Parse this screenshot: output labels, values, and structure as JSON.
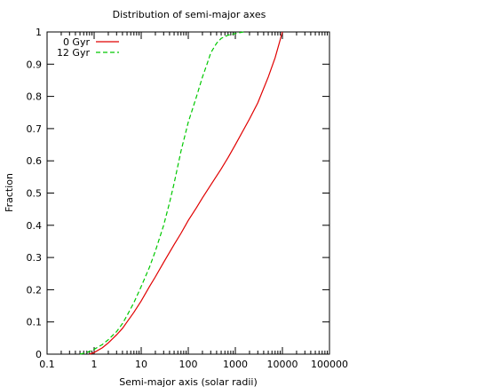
{
  "chart_data": {
    "type": "line",
    "title": "Distribution of semi-major axes",
    "xlabel": "Semi-major axis (solar radii)",
    "ylabel": "Fraction",
    "xscale": "log",
    "xlim": [
      0.1,
      100000
    ],
    "ylim": [
      0,
      1
    ],
    "grid": false,
    "legend_position": "top-left",
    "x_ticks": [
      0.1,
      1,
      10,
      100,
      1000,
      10000,
      100000
    ],
    "x_tick_labels": [
      "0.1",
      "1",
      "10",
      "100",
      "1000",
      "10000",
      "100000"
    ],
    "y_ticks": [
      0,
      0.1,
      0.2,
      0.3,
      0.4,
      0.5,
      0.6,
      0.7,
      0.8,
      0.9,
      1
    ],
    "y_tick_labels": [
      "0",
      "0.1",
      "0.2",
      "0.3",
      "0.4",
      "0.5",
      "0.6",
      "0.7",
      "0.8",
      "0.9",
      "1"
    ],
    "series": [
      {
        "name": "0 Gyr",
        "color": "#e00000",
        "dash": "solid",
        "x": [
          0.8,
          1,
          1.5,
          2,
          3,
          4,
          5,
          7,
          10,
          15,
          20,
          30,
          50,
          70,
          100,
          150,
          200,
          300,
          500,
          700,
          1000,
          2000,
          3000,
          5000,
          7000,
          10000
        ],
        "y": [
          0,
          0.005,
          0.02,
          0.035,
          0.06,
          0.08,
          0.1,
          0.13,
          0.165,
          0.21,
          0.24,
          0.285,
          0.34,
          0.375,
          0.415,
          0.455,
          0.485,
          0.525,
          0.575,
          0.61,
          0.65,
          0.73,
          0.78,
          0.86,
          0.92,
          1.0
        ]
      },
      {
        "name": "12 Gyr",
        "color": "#00c800",
        "dash": "dashed",
        "x": [
          0.5,
          0.7,
          1,
          1.5,
          2,
          3,
          4,
          5,
          7,
          10,
          15,
          20,
          30,
          40,
          50,
          70,
          100,
          150,
          200,
          250,
          300,
          400,
          500,
          700,
          1000,
          1500
        ],
        "y": [
          0,
          0.005,
          0.015,
          0.03,
          0.045,
          0.07,
          0.095,
          0.12,
          0.16,
          0.21,
          0.27,
          0.32,
          0.4,
          0.47,
          0.53,
          0.63,
          0.72,
          0.8,
          0.86,
          0.9,
          0.935,
          0.965,
          0.98,
          0.99,
          0.995,
          1.0
        ]
      }
    ]
  }
}
